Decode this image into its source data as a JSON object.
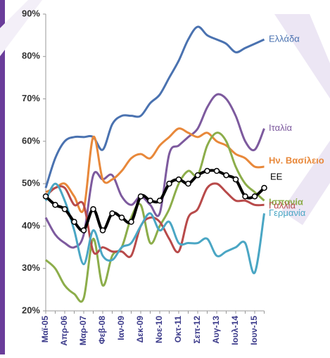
{
  "chart_data": {
    "type": "line",
    "categories": [
      "Μαϊ-05",
      null,
      "Απρ-06",
      null,
      "Μαρ-07",
      null,
      "Φεβ-08",
      null,
      "Ιαν-09",
      null,
      "Δεκ-09",
      null,
      "Νοε-10",
      null,
      "Οκτ-11",
      null,
      "Σεπ-12",
      null,
      "Αυγ-13",
      null,
      "Ιουλ-14",
      null,
      "Ιουν-15",
      null
    ],
    "series": [
      {
        "name": "Ελλάδα",
        "color": "#4a72b0",
        "values": [
          49,
          56,
          60,
          61,
          61,
          61,
          58,
          64,
          66,
          66,
          66,
          69,
          71,
          75,
          79,
          84,
          87,
          85,
          84,
          83,
          81,
          82,
          83,
          84
        ]
      },
      {
        "name": "Ιταλία",
        "color": "#7d5a9e",
        "values": [
          42,
          38,
          36,
          35,
          38,
          52,
          51,
          52,
          47,
          45,
          47,
          45,
          43,
          57,
          59,
          61,
          63,
          68,
          71,
          70,
          66,
          60,
          58,
          63
        ]
      },
      {
        "name": "Ην. Βασίλειο",
        "color": "#e8883a",
        "values": [
          48,
          49,
          50,
          47,
          44,
          61,
          51,
          51,
          53,
          56,
          57,
          56,
          59,
          61,
          63,
          62,
          61,
          62,
          60,
          59,
          57,
          56,
          54,
          54
        ]
      },
      {
        "name": "ΕΕ",
        "color": "#000000",
        "values": [
          47,
          45,
          44,
          41,
          39,
          44,
          39,
          43,
          42,
          41,
          47,
          46,
          46,
          50,
          51,
          50,
          52,
          53,
          53,
          52,
          51,
          47,
          47,
          49
        ]
      },
      {
        "name": "Ισπανία",
        "color": "#8cad4a",
        "values": [
          32,
          30,
          26,
          24,
          23,
          37,
          26,
          33,
          35,
          42,
          45,
          36,
          40,
          44,
          50,
          53,
          52,
          59,
          62,
          60,
          54,
          50,
          48,
          46
        ]
      },
      {
        "name": "Γαλλία",
        "color": "#b84a4a",
        "values": [
          47,
          49,
          49,
          45,
          45,
          34,
          35,
          34,
          34,
          33,
          40,
          42,
          41,
          37,
          34,
          42,
          44,
          49,
          50,
          48,
          46,
          46,
          45,
          45
        ]
      },
      {
        "name": "Γερμανία",
        "color": "#4aa6c4",
        "values": [
          46,
          50,
          46,
          39,
          31,
          39,
          33,
          32,
          35,
          36,
          40,
          43,
          39,
          41,
          36,
          36,
          36,
          37,
          33,
          34,
          35,
          36,
          29,
          43
        ]
      }
    ],
    "ylim": [
      20,
      90
    ],
    "yticks": [
      {
        "value": 20,
        "label": "20%"
      },
      {
        "value": 30,
        "label": "30%"
      },
      {
        "value": 40,
        "label": "40%"
      },
      {
        "value": 50,
        "label": "50%"
      },
      {
        "value": 60,
        "label": "60%"
      },
      {
        "value": 70,
        "label": "70%"
      },
      {
        "value": 80,
        "label": "80%"
      },
      {
        "value": 90,
        "label": "90%"
      }
    ],
    "grid": false
  }
}
